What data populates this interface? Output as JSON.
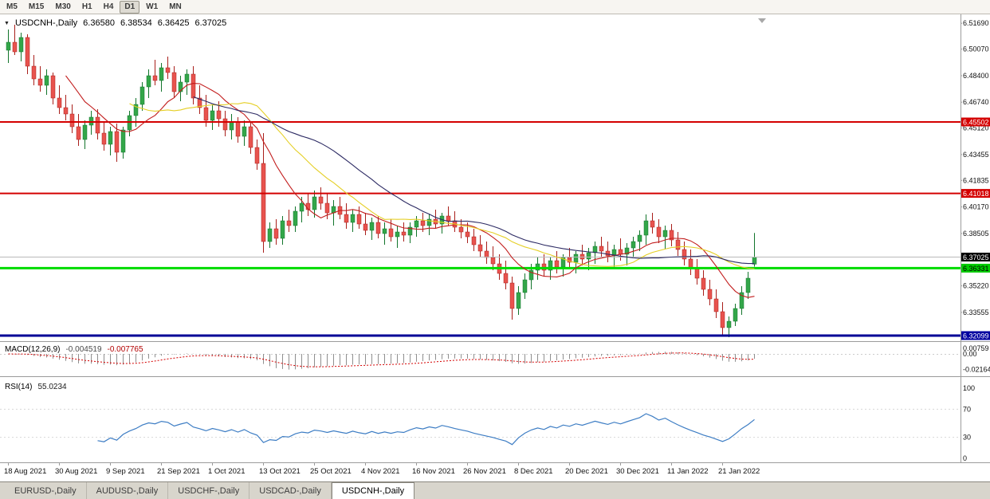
{
  "toolbar": {
    "buttons": [
      "M5",
      "M15",
      "M30",
      "H1",
      "H4",
      "D1",
      "W1",
      "MN"
    ],
    "active": "D1"
  },
  "header": {
    "collapse_icon": "▼",
    "symbol": "USDCNH-,Daily",
    "open": "6.36580",
    "high": "6.38534",
    "low": "6.36425",
    "close": "6.37025"
  },
  "chart_data": {
    "type": "candlestick",
    "symbol": "USDCNH-",
    "timeframe": "Daily",
    "y_range": [
      6.3175,
      6.5205
    ],
    "bull_color": "#33a649",
    "bull_stroke": "#13752c",
    "bear_color": "#e8534e",
    "bear_stroke": "#a91f1b",
    "candles": [
      [
        6.5,
        6.513,
        6.492,
        6.505
      ],
      [
        6.505,
        6.516,
        6.497,
        6.499
      ],
      [
        6.499,
        6.511,
        6.493,
        6.508
      ],
      [
        6.508,
        6.51,
        6.485,
        6.49
      ],
      [
        6.49,
        6.497,
        6.478,
        6.482
      ],
      [
        6.482,
        6.49,
        6.474,
        6.478
      ],
      [
        6.478,
        6.488,
        6.472,
        6.484
      ],
      [
        6.484,
        6.486,
        6.466,
        6.47
      ],
      [
        6.47,
        6.478,
        6.46,
        6.464
      ],
      [
        6.464,
        6.472,
        6.456,
        6.46
      ],
      [
        6.46,
        6.466,
        6.448,
        6.452
      ],
      [
        6.452,
        6.46,
        6.44,
        6.444
      ],
      [
        6.444,
        6.456,
        6.438,
        6.453
      ],
      [
        6.453,
        6.462,
        6.447,
        6.458
      ],
      [
        6.458,
        6.463,
        6.444,
        6.448
      ],
      [
        6.448,
        6.455,
        6.437,
        6.441
      ],
      [
        6.441,
        6.452,
        6.434,
        6.449
      ],
      [
        6.449,
        6.454,
        6.43,
        6.436
      ],
      [
        6.436,
        6.452,
        6.432,
        6.45
      ],
      [
        6.45,
        6.462,
        6.446,
        6.459
      ],
      [
        6.459,
        6.47,
        6.452,
        6.466
      ],
      [
        6.466,
        6.48,
        6.462,
        6.477
      ],
      [
        6.477,
        6.488,
        6.47,
        6.484
      ],
      [
        6.484,
        6.494,
        6.478,
        6.481
      ],
      [
        6.481,
        6.492,
        6.474,
        6.489
      ],
      [
        6.489,
        6.496,
        6.482,
        6.486
      ],
      [
        6.486,
        6.49,
        6.47,
        6.474
      ],
      [
        6.474,
        6.484,
        6.468,
        6.48
      ],
      [
        6.48,
        6.488,
        6.472,
        6.485
      ],
      [
        6.485,
        6.49,
        6.466,
        6.47
      ],
      [
        6.47,
        6.478,
        6.46,
        6.464
      ],
      [
        6.464,
        6.472,
        6.452,
        6.456
      ],
      [
        6.456,
        6.466,
        6.45,
        6.462
      ],
      [
        6.462,
        6.468,
        6.452,
        6.457
      ],
      [
        6.457,
        6.462,
        6.446,
        6.45
      ],
      [
        6.45,
        6.46,
        6.444,
        6.455
      ],
      [
        6.455,
        6.458,
        6.442,
        6.446
      ],
      [
        6.446,
        6.456,
        6.44,
        6.452
      ],
      [
        6.452,
        6.455,
        6.435,
        6.439
      ],
      [
        6.439,
        6.444,
        6.425,
        6.429
      ],
      [
        6.429,
        6.448,
        6.373,
        6.38
      ],
      [
        6.38,
        6.392,
        6.376,
        6.388
      ],
      [
        6.388,
        6.394,
        6.378,
        6.382
      ],
      [
        6.382,
        6.396,
        6.378,
        6.393
      ],
      [
        6.393,
        6.4,
        6.386,
        6.39
      ],
      [
        6.39,
        6.402,
        6.386,
        6.399
      ],
      [
        6.399,
        6.408,
        6.392,
        6.404
      ],
      [
        6.404,
        6.41,
        6.396,
        6.4
      ],
      [
        6.4,
        6.412,
        6.395,
        6.408
      ],
      [
        6.408,
        6.414,
        6.4,
        6.404
      ],
      [
        6.404,
        6.41,
        6.394,
        6.398
      ],
      [
        6.398,
        6.406,
        6.39,
        6.402
      ],
      [
        6.402,
        6.408,
        6.394,
        6.397
      ],
      [
        6.397,
        6.404,
        6.388,
        6.392
      ],
      [
        6.392,
        6.4,
        6.386,
        6.397
      ],
      [
        6.397,
        6.402,
        6.388,
        6.391
      ],
      [
        6.391,
        6.398,
        6.384,
        6.387
      ],
      [
        6.387,
        6.395,
        6.381,
        6.392
      ],
      [
        6.392,
        6.396,
        6.382,
        6.385
      ],
      [
        6.385,
        6.392,
        6.378,
        6.388
      ],
      [
        6.388,
        6.394,
        6.38,
        6.383
      ],
      [
        6.383,
        6.39,
        6.376,
        6.386
      ],
      [
        6.386,
        6.392,
        6.38,
        6.384
      ],
      [
        6.384,
        6.392,
        6.379,
        6.389
      ],
      [
        6.389,
        6.396,
        6.383,
        6.393
      ],
      [
        6.393,
        6.398,
        6.386,
        6.39
      ],
      [
        6.39,
        6.397,
        6.384,
        6.394
      ],
      [
        6.394,
        6.4,
        6.388,
        6.391
      ],
      [
        6.391,
        6.398,
        6.385,
        6.396
      ],
      [
        6.396,
        6.402,
        6.39,
        6.393
      ],
      [
        6.393,
        6.399,
        6.386,
        6.389
      ],
      [
        6.389,
        6.394,
        6.382,
        6.386
      ],
      [
        6.386,
        6.392,
        6.379,
        6.383
      ],
      [
        6.383,
        6.388,
        6.374,
        6.378
      ],
      [
        6.378,
        6.384,
        6.37,
        6.374
      ],
      [
        6.374,
        6.38,
        6.366,
        6.37
      ],
      [
        6.37,
        6.377,
        6.362,
        6.366
      ],
      [
        6.366,
        6.372,
        6.356,
        6.36
      ],
      [
        6.36,
        6.368,
        6.35,
        6.354
      ],
      [
        6.354,
        6.358,
        6.331,
        6.338
      ],
      [
        6.338,
        6.352,
        6.334,
        6.348
      ],
      [
        6.348,
        6.36,
        6.344,
        6.356
      ],
      [
        6.356,
        6.366,
        6.35,
        6.362
      ],
      [
        6.362,
        6.37,
        6.356,
        6.366
      ],
      [
        6.366,
        6.372,
        6.358,
        6.362
      ],
      [
        6.362,
        6.37,
        6.356,
        6.368
      ],
      [
        6.368,
        6.374,
        6.36,
        6.364
      ],
      [
        6.364,
        6.372,
        6.358,
        6.37
      ],
      [
        6.37,
        6.376,
        6.363,
        6.367
      ],
      [
        6.367,
        6.374,
        6.36,
        6.372
      ],
      [
        6.372,
        6.378,
        6.365,
        6.369
      ],
      [
        6.369,
        6.376,
        6.362,
        6.373
      ],
      [
        6.373,
        6.38,
        6.366,
        6.377
      ],
      [
        6.377,
        6.383,
        6.37,
        6.374
      ],
      [
        6.374,
        6.38,
        6.367,
        6.371
      ],
      [
        6.371,
        6.378,
        6.364,
        6.375
      ],
      [
        6.375,
        6.382,
        6.368,
        6.372
      ],
      [
        6.372,
        6.379,
        6.365,
        6.376
      ],
      [
        6.376,
        6.383,
        6.37,
        6.38
      ],
      [
        6.38,
        6.387,
        6.374,
        6.384
      ],
      [
        6.384,
        6.397,
        6.378,
        6.393
      ],
      [
        6.393,
        6.398,
        6.385,
        6.389
      ],
      [
        6.389,
        6.394,
        6.379,
        6.383
      ],
      [
        6.383,
        6.39,
        6.375,
        6.387
      ],
      [
        6.387,
        6.391,
        6.377,
        6.381
      ],
      [
        6.381,
        6.386,
        6.371,
        6.375
      ],
      [
        6.375,
        6.38,
        6.365,
        6.369
      ],
      [
        6.369,
        6.375,
        6.359,
        6.363
      ],
      [
        6.363,
        6.369,
        6.353,
        6.357
      ],
      [
        6.357,
        6.362,
        6.346,
        6.35
      ],
      [
        6.35,
        6.356,
        6.34,
        6.344
      ],
      [
        6.344,
        6.35,
        6.332,
        6.336
      ],
      [
        6.336,
        6.342,
        6.321,
        6.326
      ],
      [
        6.326,
        6.333,
        6.32,
        6.33
      ],
      [
        6.33,
        6.341,
        6.327,
        6.338
      ],
      [
        6.338,
        6.352,
        6.334,
        6.348
      ],
      [
        6.348,
        6.361,
        6.344,
        6.357
      ],
      [
        6.3658,
        6.38534,
        6.36425,
        6.37025
      ]
    ],
    "moving_averages": [
      {
        "period": 10,
        "color": "#c21d1d"
      },
      {
        "period": 20,
        "color": "#e5cf25"
      },
      {
        "period": 30,
        "color": "#2c2a63"
      }
    ],
    "hlines": [
      {
        "price": 6.45502,
        "color": "#d40000",
        "width": 2
      },
      {
        "price": 6.41018,
        "color": "#d40000",
        "width": 2
      },
      {
        "price": 6.37025,
        "color": "#b9b9b9",
        "width": 1
      },
      {
        "price": 6.36331,
        "color": "#00dc00",
        "width": 3
      },
      {
        "price": 6.32099,
        "color": "#000096",
        "width": 3
      }
    ],
    "price_axis": {
      "labels": [
        6.5169,
        6.5007,
        6.484,
        6.4674,
        6.4512,
        6.43455,
        6.41835,
        6.4017,
        6.38505,
        6.3522,
        6.33555
      ],
      "badges": [
        {
          "price": 6.45502,
          "bg": "#d40000",
          "fg": "#ffffff"
        },
        {
          "price": 6.41018,
          "bg": "#d40000",
          "fg": "#ffffff"
        },
        {
          "price": 6.37025,
          "bg": "#000000",
          "fg": "#ffffff"
        },
        {
          "price": 6.36331,
          "bg": "#00cc00",
          "fg": "#000000"
        },
        {
          "price": 6.32099,
          "bg": "#0000a0",
          "fg": "#ffffff"
        }
      ]
    },
    "macd": {
      "title": "MACD(12,26,9)",
      "value_main": "-0.004519",
      "value_signal": "-0.007765",
      "fast": 12,
      "slow": 26,
      "signal": 9,
      "histogram_color": "#8f8f8f",
      "signal_color": "#d40000",
      "axis_labels": [
        {
          "v": 0.00759,
          "label": "0.00759"
        },
        {
          "v": 0,
          "label": "0.00"
        },
        {
          "v": -0.02164,
          "label": "-0.02164"
        }
      ]
    },
    "rsi": {
      "title": "RSI(14)",
      "value": "55.0234",
      "period": 14,
      "line_color": "#3d7dc4",
      "levels": [
        70,
        30
      ],
      "axis_labels": [
        {
          "v": 100,
          "label": "100"
        },
        {
          "v": 70,
          "label": "70"
        },
        {
          "v": 30,
          "label": "30"
        },
        {
          "v": 0,
          "label": "0"
        }
      ]
    },
    "time_axis": [
      {
        "label": "18 Aug 2021",
        "bar": 0
      },
      {
        "label": "30 Aug 2021",
        "bar": 8
      },
      {
        "label": "9 Sep 2021",
        "bar": 16
      },
      {
        "label": "21 Sep 2021",
        "bar": 24
      },
      {
        "label": "1 Oct 2021",
        "bar": 32
      },
      {
        "label": "13 Oct 2021",
        "bar": 40
      },
      {
        "label": "25 Oct 2021",
        "bar": 48
      },
      {
        "label": "4 Nov 2021",
        "bar": 56
      },
      {
        "label": "16 Nov 2021",
        "bar": 64
      },
      {
        "label": "26 Nov 2021",
        "bar": 72
      },
      {
        "label": "8 Dec 2021",
        "bar": 80
      },
      {
        "label": "20 Dec 2021",
        "bar": 88
      },
      {
        "label": "30 Dec 2021",
        "bar": 96
      },
      {
        "label": "11 Jan 2022",
        "bar": 104
      },
      {
        "label": "21 Jan 2022",
        "bar": 112
      }
    ]
  },
  "tabs": {
    "items": [
      {
        "label": "EURUSD-,Daily",
        "active": false
      },
      {
        "label": "AUDUSD-,Daily",
        "active": false
      },
      {
        "label": "USDCHF-,Daily",
        "active": false
      },
      {
        "label": "USDCAD-,Daily",
        "active": false
      },
      {
        "label": "USDCNH-,Daily",
        "active": true
      }
    ]
  }
}
